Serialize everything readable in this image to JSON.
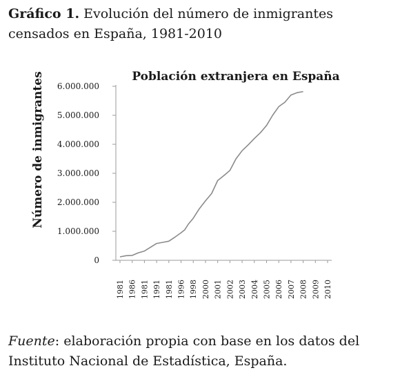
{
  "caption": {
    "label": "Gráfico 1.",
    "text": " Evolución del número de inmigrantes censados en España, 1981-2010"
  },
  "chart_data": {
    "type": "line",
    "title": "Población extranjera en España",
    "xlabel": "",
    "ylabel": "Número de inmigrantes",
    "ylim": [
      0,
      6000000
    ],
    "yticks": [
      {
        "value": 0,
        "label": "0"
      },
      {
        "value": 1000000,
        "label": "1.000.000"
      },
      {
        "value": 2000000,
        "label": "2.000.000"
      },
      {
        "value": 3000000,
        "label": "3.000.000"
      },
      {
        "value": 4000000,
        "label": "4.000.000"
      },
      {
        "value": 5000000,
        "label": "5.000.000"
      },
      {
        "value": 6000000,
        "label": "6.000.000"
      }
    ],
    "categories": [
      "1981",
      "1986",
      "1981",
      "1991",
      "1981",
      "1996",
      "1998",
      "2000",
      "2001",
      "2002",
      "2003",
      "2004",
      "2005",
      "2006",
      "2007",
      "2008",
      "2009",
      "2010"
    ],
    "series": [
      {
        "color": "#8a8a8a",
        "points": [
          [
            0,
            120000
          ],
          [
            0.5,
            160000
          ],
          [
            1,
            170000
          ],
          [
            1.5,
            260000
          ],
          [
            2,
            320000
          ],
          [
            2.5,
            450000
          ],
          [
            3,
            580000
          ],
          [
            3.5,
            620000
          ],
          [
            4,
            660000
          ],
          [
            4.5,
            800000
          ],
          [
            5,
            950000
          ],
          [
            5.3,
            1050000
          ],
          [
            5.6,
            1250000
          ],
          [
            6,
            1450000
          ],
          [
            6.5,
            1780000
          ],
          [
            7,
            2050000
          ],
          [
            7.5,
            2300000
          ],
          [
            8,
            2750000
          ],
          [
            8.5,
            2920000
          ],
          [
            9,
            3100000
          ],
          [
            9.5,
            3500000
          ],
          [
            10,
            3780000
          ],
          [
            10.5,
            3980000
          ],
          [
            11,
            4200000
          ],
          [
            11.5,
            4400000
          ],
          [
            12,
            4650000
          ],
          [
            12.5,
            5000000
          ],
          [
            13,
            5300000
          ],
          [
            13.5,
            5450000
          ],
          [
            14,
            5700000
          ],
          [
            14.5,
            5780000
          ],
          [
            15,
            5820000
          ]
        ]
      }
    ],
    "grid": false,
    "legend": "none"
  },
  "source": {
    "label": "Fuente",
    "text": ": elaboración propia con base en los datos del Instituto Nacional de Estadística, España."
  }
}
